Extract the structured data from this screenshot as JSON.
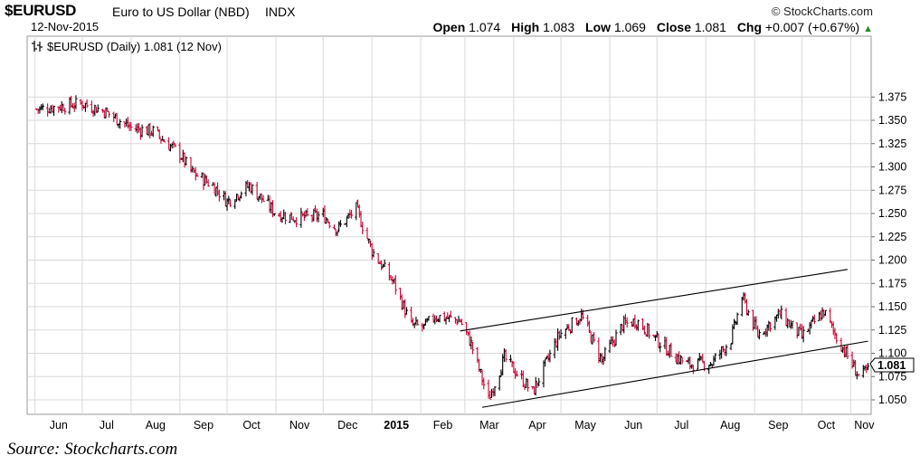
{
  "header": {
    "symbol": "$EURUSD",
    "name": "Euro to US Dollar (NBD)",
    "exchange": "INDX",
    "brand": "© StockCharts.com",
    "date": "12-Nov-2015",
    "open_label": "Open",
    "open": "1.074",
    "high_label": "High",
    "high": "1.083",
    "low_label": "Low",
    "low": "1.069",
    "close_label": "Close",
    "close": "1.081",
    "chg_label": "Chg",
    "chg": "+0.007 (+0.67%)",
    "up_arrow": "▲"
  },
  "legend": {
    "text": "$EURUSD (Daily) 1.081 (12 Nov)",
    "icon": "ohlc-bar-icon"
  },
  "source": "Source: Stockcharts.com",
  "colors": {
    "up_bar": "#000000",
    "down_bar": "#cc0033",
    "grid": "#d9d9d9",
    "trendline": "#000000"
  },
  "chart_data": {
    "type": "line",
    "title": "$EURUSD (Daily) 1.081 (12 Nov)",
    "style": "OHLC bars (up black, down red)",
    "xlabel": "",
    "ylabel": "",
    "ylim": [
      1.04,
      1.38
    ],
    "grid": true,
    "legend_position": "top-left",
    "x_tick_labels": [
      "Jun",
      "Jul",
      "Aug",
      "Sep",
      "Oct",
      "Nov",
      "Dec",
      "2015",
      "Feb",
      "Mar",
      "Apr",
      "May",
      "Jun",
      "Jul",
      "Aug",
      "Sep",
      "Oct",
      "Nov"
    ],
    "y_tick_labels": [
      "1.050",
      "1.075",
      "1.100",
      "1.125",
      "1.150",
      "1.175",
      "1.200",
      "1.225",
      "1.250",
      "1.275",
      "1.300",
      "1.325",
      "1.350",
      "1.375"
    ],
    "last_value_label": "1.081",
    "series": [
      {
        "values_note": "approximate monthly closes read from chart",
        "x": [
          "2014-06",
          "2014-07",
          "2014-08",
          "2014-09",
          "2014-10",
          "2014-11",
          "2014-12",
          "2015-01",
          "2015-02",
          "2015-03",
          "2015-04",
          "2015-05",
          "2015-06",
          "2015-07",
          "2015-08",
          "2015-09",
          "2015-10",
          "2015-11"
        ],
        "values": [
          1.362,
          1.36,
          1.34,
          1.32,
          1.27,
          1.25,
          1.23,
          1.16,
          1.13,
          1.09,
          1.07,
          1.135,
          1.12,
          1.1,
          1.095,
          1.12,
          1.135,
          1.075
        ]
      }
    ],
    "key_points": [
      {
        "x": "2014-06-02",
        "y": 1.362
      },
      {
        "x": "2014-07-01",
        "y": 1.368
      },
      {
        "x": "2014-07-15",
        "y": 1.36
      },
      {
        "x": "2014-08-01",
        "y": 1.342
      },
      {
        "x": "2014-08-15",
        "y": 1.338
      },
      {
        "x": "2014-09-01",
        "y": 1.314
      },
      {
        "x": "2014-09-08",
        "y": 1.295
      },
      {
        "x": "2014-09-22",
        "y": 1.28
      },
      {
        "x": "2014-10-01",
        "y": 1.263
      },
      {
        "x": "2014-10-15",
        "y": 1.28
      },
      {
        "x": "2014-11-01",
        "y": 1.25
      },
      {
        "x": "2014-11-15",
        "y": 1.245
      },
      {
        "x": "2014-12-01",
        "y": 1.248
      },
      {
        "x": "2014-12-10",
        "y": 1.233
      },
      {
        "x": "2014-12-22",
        "y": 1.255
      },
      {
        "x": "2015-01-01",
        "y": 1.21
      },
      {
        "x": "2015-01-15",
        "y": 1.175
      },
      {
        "x": "2015-01-26",
        "y": 1.13
      },
      {
        "x": "2015-02-03",
        "y": 1.128
      },
      {
        "x": "2015-02-10",
        "y": 1.14
      },
      {
        "x": "2015-02-26",
        "y": 1.135
      },
      {
        "x": "2015-03-05",
        "y": 1.11
      },
      {
        "x": "2015-03-16",
        "y": 1.05
      },
      {
        "x": "2015-03-26",
        "y": 1.095
      },
      {
        "x": "2015-04-13",
        "y": 1.058
      },
      {
        "x": "2015-04-30",
        "y": 1.12
      },
      {
        "x": "2015-05-14",
        "y": 1.14
      },
      {
        "x": "2015-05-27",
        "y": 1.092
      },
      {
        "x": "2015-06-09",
        "y": 1.13
      },
      {
        "x": "2015-06-18",
        "y": 1.135
      },
      {
        "x": "2015-07-07",
        "y": 1.105
      },
      {
        "x": "2015-07-20",
        "y": 1.088
      },
      {
        "x": "2015-08-05",
        "y": 1.09
      },
      {
        "x": "2015-08-17",
        "y": 1.115
      },
      {
        "x": "2015-08-24",
        "y": 1.16
      },
      {
        "x": "2015-09-03",
        "y": 1.12
      },
      {
        "x": "2015-09-17",
        "y": 1.142
      },
      {
        "x": "2015-10-01",
        "y": 1.118
      },
      {
        "x": "2015-10-15",
        "y": 1.145
      },
      {
        "x": "2015-10-22",
        "y": 1.12
      },
      {
        "x": "2015-10-29",
        "y": 1.1
      },
      {
        "x": "2015-11-06",
        "y": 1.076
      },
      {
        "x": "2015-11-12",
        "y": 1.081
      }
    ],
    "trendlines": [
      {
        "from": {
          "x": "2015-02-26",
          "y": 1.124
        },
        "to": {
          "x": "2015-10-30",
          "y": 1.19
        }
      },
      {
        "from": {
          "x": "2015-03-12",
          "y": 1.042
        },
        "to": {
          "x": "2015-11-12",
          "y": 1.113
        }
      }
    ]
  }
}
